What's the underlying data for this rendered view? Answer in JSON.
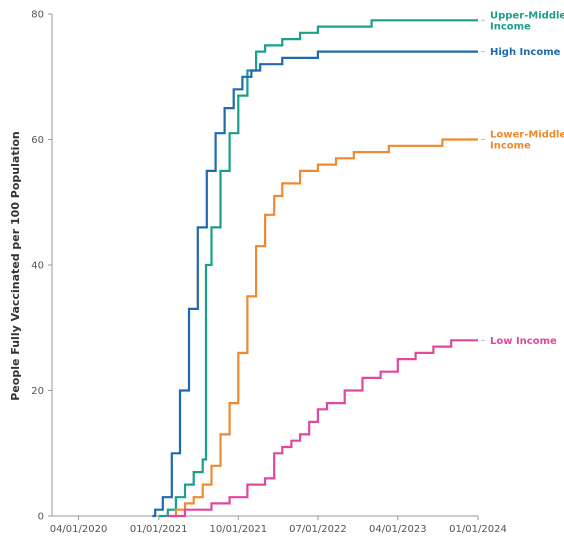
{
  "chart_data": {
    "type": "line",
    "ylabel": "People Fully Vaccinated per 100 Population",
    "xlabel": "",
    "ylim": [
      0,
      80
    ],
    "yticks": [
      "0",
      "20",
      "40",
      "60",
      "80"
    ],
    "xticks": [
      "04/01/2020",
      "01/01/2021",
      "10/01/2021",
      "07/01/2022",
      "04/01/2023",
      "01/01/2024"
    ],
    "x_range": [
      "2020-01-01",
      "2024-01-01"
    ],
    "grid": false,
    "legend": "right",
    "series": [
      {
        "name": "Upper-Middle Income",
        "color": "#1aa08a",
        "points": [
          [
            "2021-01-01",
            0
          ],
          [
            "2021-02-01",
            1
          ],
          [
            "2021-03-01",
            3
          ],
          [
            "2021-04-01",
            5
          ],
          [
            "2021-05-01",
            7
          ],
          [
            "2021-06-01",
            9
          ],
          [
            "2021-06-12",
            40
          ],
          [
            "2021-07-01",
            46
          ],
          [
            "2021-08-01",
            55
          ],
          [
            "2021-09-01",
            61
          ],
          [
            "2021-10-01",
            67
          ],
          [
            "2021-11-01",
            71
          ],
          [
            "2021-12-01",
            74
          ],
          [
            "2022-01-01",
            75
          ],
          [
            "2022-03-01",
            76
          ],
          [
            "2022-05-01",
            77
          ],
          [
            "2022-07-01",
            78
          ],
          [
            "2023-01-01",
            79
          ],
          [
            "2024-01-01",
            79
          ]
        ]
      },
      {
        "name": "High Income",
        "color": "#1f6aad",
        "points": [
          [
            "2020-12-10",
            0
          ],
          [
            "2020-12-20",
            1
          ],
          [
            "2021-01-15",
            3
          ],
          [
            "2021-02-15",
            10
          ],
          [
            "2021-03-15",
            20
          ],
          [
            "2021-04-15",
            33
          ],
          [
            "2021-05-15",
            46
          ],
          [
            "2021-06-15",
            55
          ],
          [
            "2021-07-15",
            61
          ],
          [
            "2021-08-15",
            65
          ],
          [
            "2021-09-15",
            68
          ],
          [
            "2021-10-15",
            70
          ],
          [
            "2021-11-15",
            71
          ],
          [
            "2021-12-15",
            72
          ],
          [
            "2022-03-01",
            73
          ],
          [
            "2022-07-01",
            74
          ],
          [
            "2024-01-01",
            74
          ]
        ]
      },
      {
        "name": "Lower-Middle Income",
        "color": "#ef8a2e",
        "points": [
          [
            "2021-02-01",
            0
          ],
          [
            "2021-03-01",
            1
          ],
          [
            "2021-04-01",
            2
          ],
          [
            "2021-05-01",
            3
          ],
          [
            "2021-06-01",
            5
          ],
          [
            "2021-07-01",
            8
          ],
          [
            "2021-08-01",
            13
          ],
          [
            "2021-09-01",
            18
          ],
          [
            "2021-10-01",
            26
          ],
          [
            "2021-11-01",
            35
          ],
          [
            "2021-12-01",
            43
          ],
          [
            "2022-01-01",
            48
          ],
          [
            "2022-02-01",
            51
          ],
          [
            "2022-03-01",
            53
          ],
          [
            "2022-05-01",
            55
          ],
          [
            "2022-07-01",
            56
          ],
          [
            "2022-09-01",
            57
          ],
          [
            "2022-11-01",
            58
          ],
          [
            "2023-03-01",
            59
          ],
          [
            "2023-09-01",
            60
          ],
          [
            "2024-01-01",
            60
          ]
        ]
      },
      {
        "name": "Low Income",
        "color": "#e0489d",
        "points": [
          [
            "2021-02-01",
            0
          ],
          [
            "2021-04-01",
            1
          ],
          [
            "2021-07-01",
            2
          ],
          [
            "2021-09-01",
            3
          ],
          [
            "2021-11-01",
            5
          ],
          [
            "2022-01-01",
            6
          ],
          [
            "2022-02-01",
            10
          ],
          [
            "2022-03-01",
            11
          ],
          [
            "2022-04-01",
            12
          ],
          [
            "2022-05-01",
            13
          ],
          [
            "2022-06-01",
            15
          ],
          [
            "2022-07-01",
            17
          ],
          [
            "2022-08-01",
            18
          ],
          [
            "2022-10-01",
            20
          ],
          [
            "2022-12-01",
            22
          ],
          [
            "2023-02-01",
            23
          ],
          [
            "2023-04-01",
            25
          ],
          [
            "2023-06-01",
            26
          ],
          [
            "2023-08-01",
            27
          ],
          [
            "2023-10-01",
            28
          ],
          [
            "2024-01-01",
            28
          ]
        ]
      }
    ]
  },
  "legend_labels": [
    {
      "lines": [
        "Upper-Middle",
        "Income"
      ],
      "color": "#1aa08a",
      "at": 79
    },
    {
      "lines": [
        "High Income"
      ],
      "color": "#1f6aad",
      "at": 74
    },
    {
      "lines": [
        "Lower-Middle",
        "Income"
      ],
      "color": "#ef8a2e",
      "at": 60
    },
    {
      "lines": [
        "Low Income"
      ],
      "color": "#e0489d",
      "at": 28
    }
  ]
}
